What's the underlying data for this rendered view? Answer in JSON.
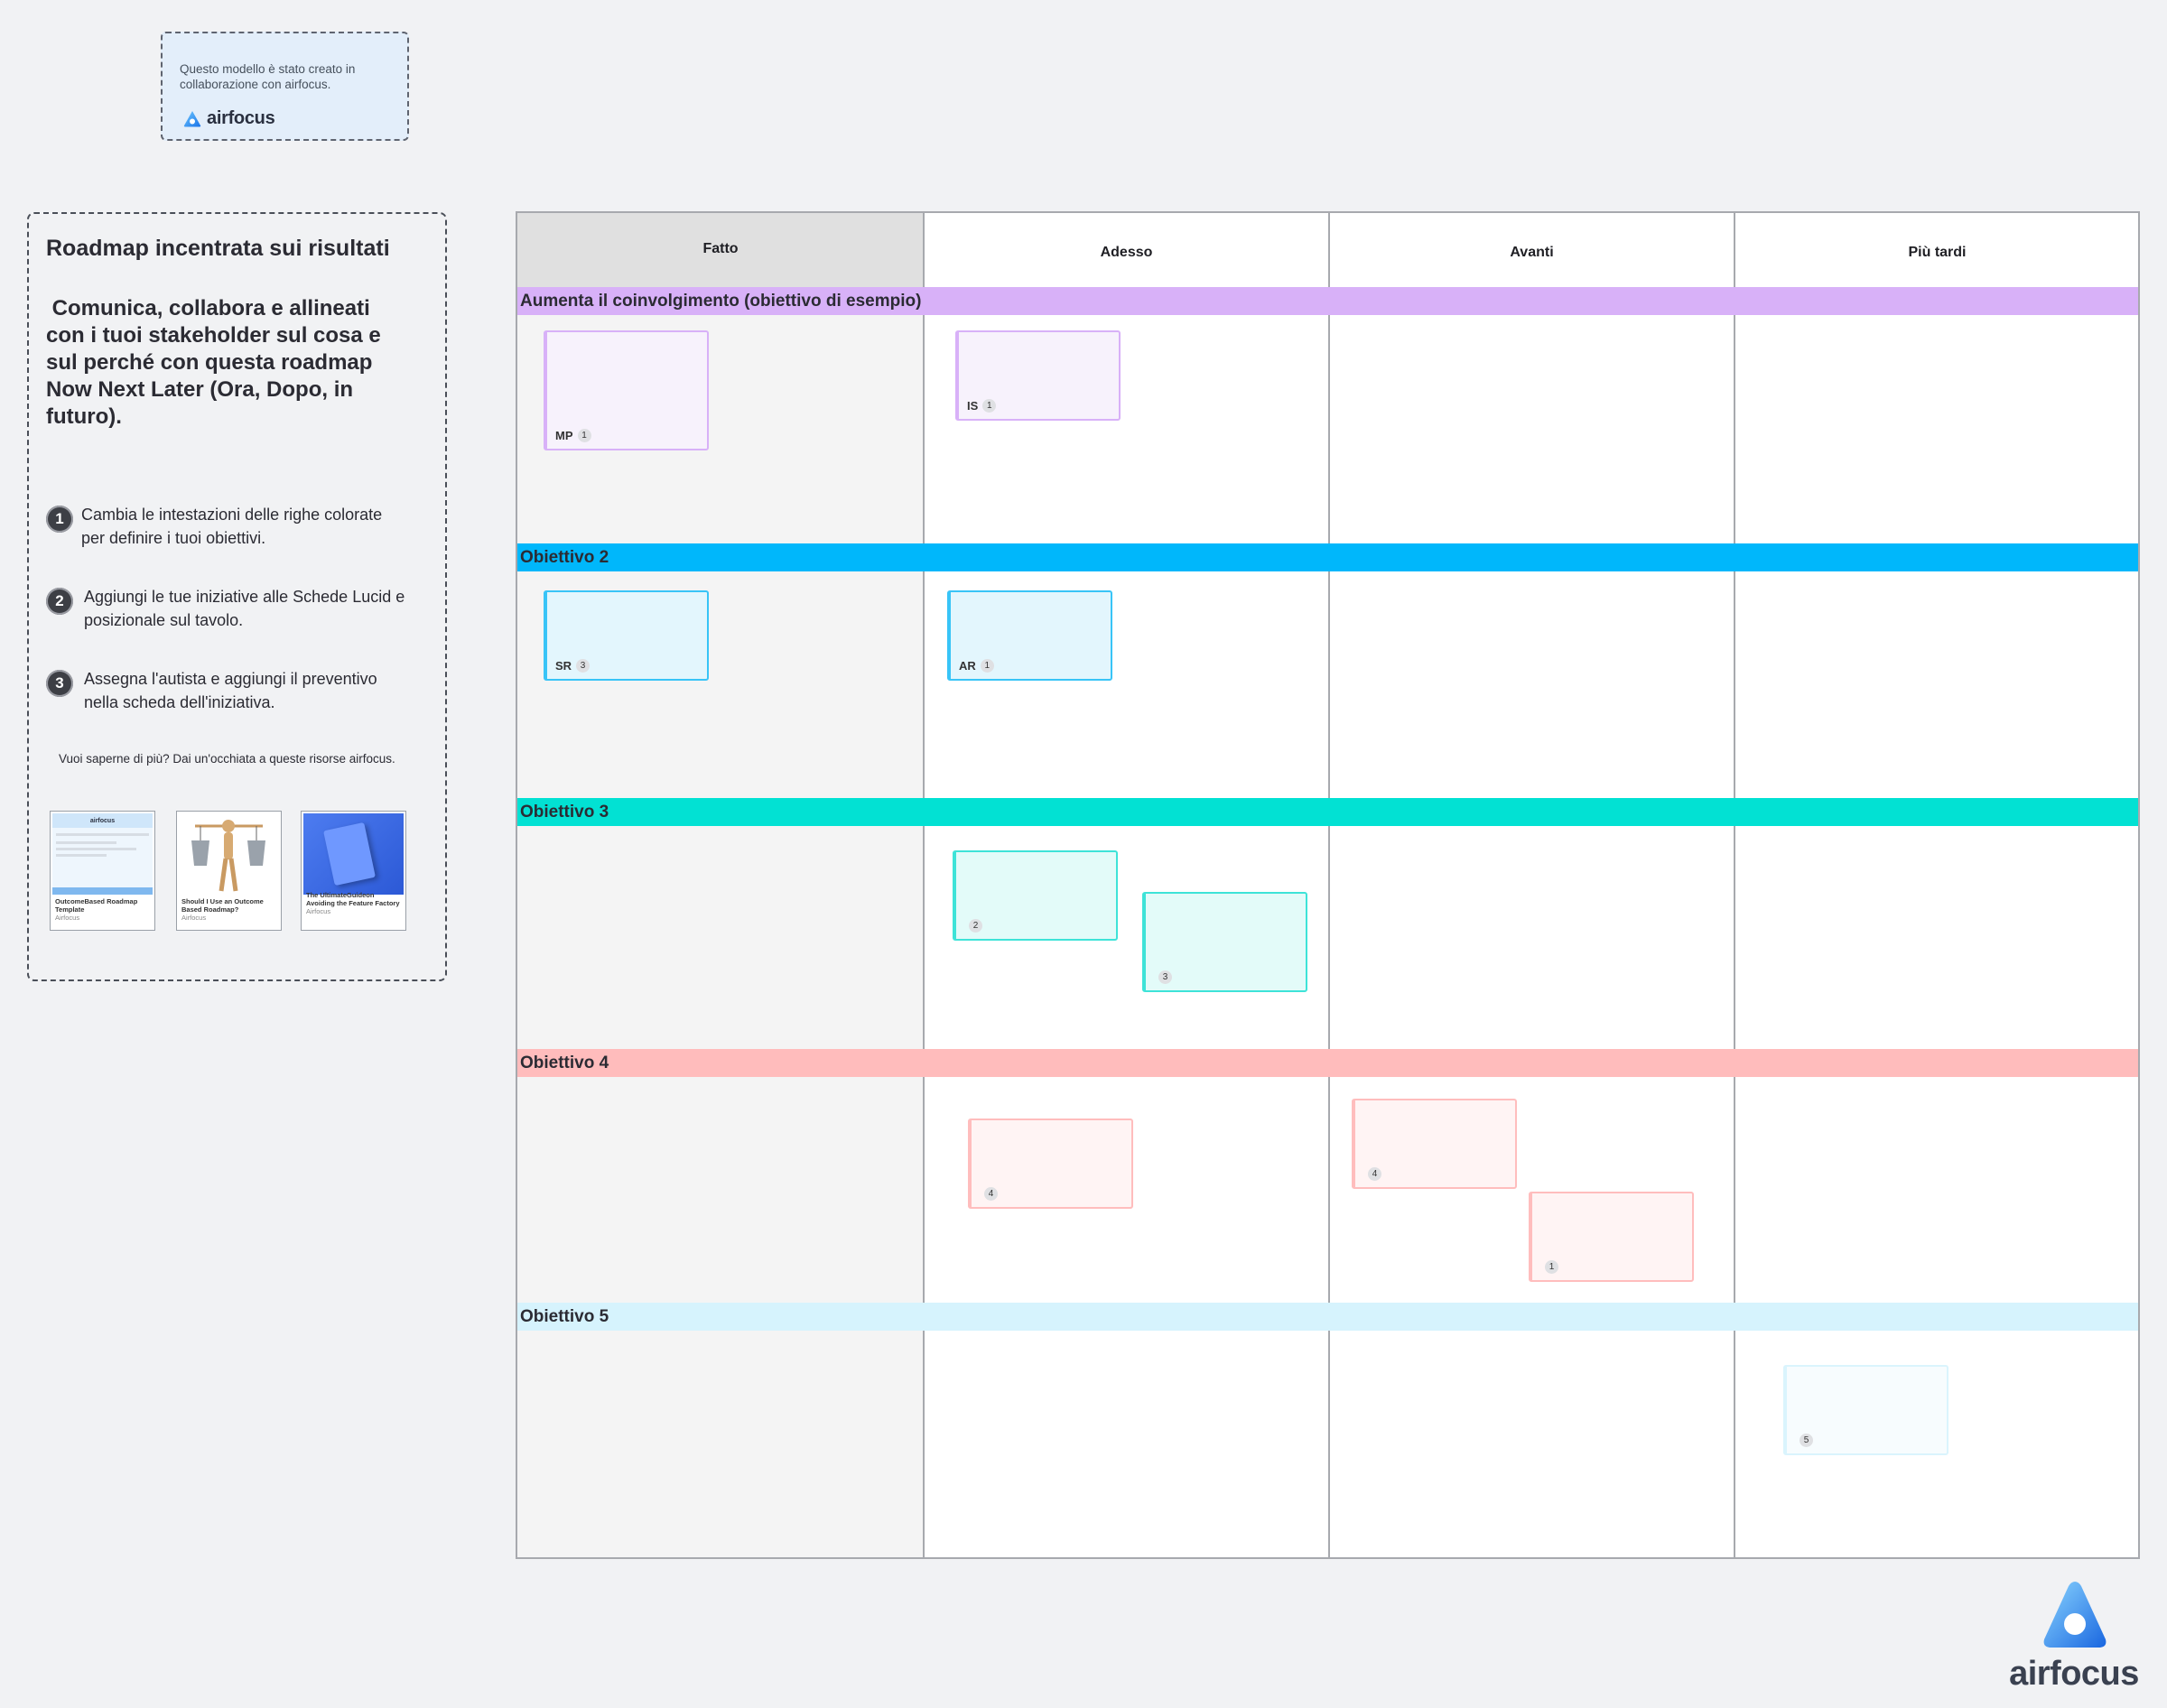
{
  "credit": {
    "text": "Questo modello è stato creato in collaborazione con airfocus.",
    "logo_text": "airfocus"
  },
  "info": {
    "title": "Roadmap incentrata sui risultati",
    "description": " Comunica, collabora e allineati con i tuoi stakeholder sul cosa e sul perché con questa roadmap Now Next Later (Ora, Dopo, in futuro).",
    "steps": [
      {
        "num": "1",
        "text": "Cambia le intestazioni delle righe colorate per definire i tuoi obiettivi."
      },
      {
        "num": "2",
        "text": "Aggiungi le tue iniziative alle Schede Lucid e posizionale sul tavolo."
      },
      {
        "num": "3",
        "text": "Assegna l'autista e aggiungi il preventivo nella scheda dell'iniziativa."
      }
    ],
    "more": "Vuoi saperne di più? Dai un'occhiata a queste risorse airfocus.",
    "resources": [
      {
        "title": "OutcomeBased Roadmap Template",
        "source": "Airfocus",
        "thumb_brand": "airfocus"
      },
      {
        "title": "Should I Use an Outcome Based Roadmap?",
        "source": "Airfocus"
      },
      {
        "title": "The UltimateGuideon Avoiding the Feature Factory",
        "source": "Airfocus"
      }
    ]
  },
  "board": {
    "columns": [
      "Fatto",
      "Adesso",
      "Avanti",
      "Più tardi"
    ],
    "rows": [
      {
        "label": "Aumenta il coinvolgimento (obiettivo di esempio)",
        "color": "#d8b1f8"
      },
      {
        "label": "Obiettivo 2",
        "color": "#00b7fb"
      },
      {
        "label": "Obiettivo 3",
        "color": "#02e1d3"
      },
      {
        "label": "Obiettivo 4",
        "color": "#ffbcbc"
      },
      {
        "label": "Obiettivo 5",
        "color": "#d6f3fd"
      }
    ],
    "cards": [
      {
        "code": "MP",
        "count": "1"
      },
      {
        "code": "IS",
        "count": "1"
      },
      {
        "code": "SR",
        "count": "3"
      },
      {
        "code": "AR",
        "count": "1"
      },
      {
        "code": "",
        "count": "2"
      },
      {
        "code": "",
        "count": "3"
      },
      {
        "code": "",
        "count": "4"
      },
      {
        "code": "",
        "count": "4"
      },
      {
        "code": "",
        "count": "1"
      },
      {
        "code": "",
        "count": "5"
      }
    ]
  },
  "brand": {
    "text": "airfocus"
  }
}
